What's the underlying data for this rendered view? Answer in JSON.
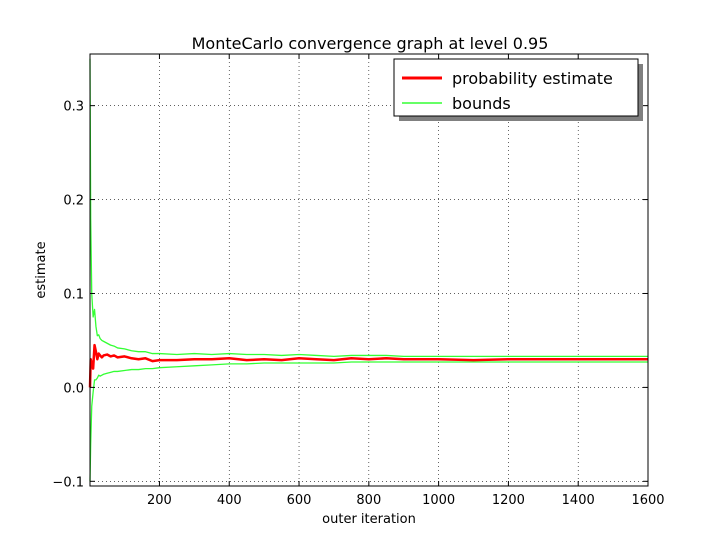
{
  "chart_data": {
    "type": "line",
    "title": "MonteCarlo convergence graph at level 0.95",
    "xlabel": "outer iteration",
    "ylabel": "estimate",
    "xlim": [
      1,
      1600
    ],
    "ylim": [
      -0.105,
      0.355
    ],
    "xticks": [
      200,
      400,
      600,
      800,
      1000,
      1200,
      1400,
      1600
    ],
    "yticks": [
      -0.1,
      0.0,
      0.1,
      0.2,
      0.3
    ],
    "ytick_labels": [
      "−0.1",
      "0.0",
      "0.1",
      "0.2",
      "0.3"
    ],
    "grid": true,
    "legend_position": "top-right",
    "legend": [
      "probability estimate",
      "bounds"
    ],
    "colors": {
      "estimate": "#ff0000",
      "bounds": "#33ff33"
    },
    "series": [
      {
        "name": "probability estimate",
        "x": [
          1,
          3,
          6,
          10,
          14,
          18,
          22,
          26,
          30,
          35,
          40,
          50,
          60,
          70,
          80,
          100,
          120,
          140,
          160,
          180,
          200,
          250,
          300,
          350,
          400,
          450,
          500,
          550,
          600,
          650,
          700,
          750,
          800,
          850,
          900,
          950,
          1000,
          1100,
          1200,
          1300,
          1400,
          1500,
          1600
        ],
        "y": [
          0.0,
          0.03,
          0.025,
          0.02,
          0.045,
          0.038,
          0.03,
          0.036,
          0.034,
          0.032,
          0.034,
          0.035,
          0.033,
          0.034,
          0.032,
          0.033,
          0.031,
          0.03,
          0.031,
          0.028,
          0.029,
          0.029,
          0.03,
          0.03,
          0.031,
          0.029,
          0.03,
          0.029,
          0.031,
          0.03,
          0.029,
          0.031,
          0.03,
          0.031,
          0.03,
          0.03,
          0.03,
          0.029,
          0.03,
          0.03,
          0.03,
          0.03,
          0.03
        ]
      },
      {
        "name": "bounds",
        "x": [
          1,
          3,
          6,
          10,
          14,
          18,
          22,
          26,
          30,
          35,
          40,
          50,
          60,
          70,
          80,
          100,
          120,
          140,
          160,
          180,
          200,
          250,
          300,
          350,
          400,
          450,
          500,
          550,
          600,
          650,
          700,
          750,
          800,
          850,
          900,
          950,
          1000,
          1100,
          1200,
          1300,
          1400,
          1500,
          1600
        ],
        "y": [
          0.35,
          0.18,
          0.1,
          0.075,
          0.083,
          0.065,
          0.055,
          0.056,
          0.052,
          0.05,
          0.049,
          0.047,
          0.045,
          0.044,
          0.042,
          0.041,
          0.039,
          0.038,
          0.038,
          0.036,
          0.036,
          0.035,
          0.036,
          0.035,
          0.036,
          0.035,
          0.035,
          0.034,
          0.035,
          0.034,
          0.033,
          0.034,
          0.034,
          0.034,
          0.033,
          0.033,
          0.033,
          0.033,
          0.033,
          0.033,
          0.033,
          0.033,
          0.033
        ]
      },
      {
        "name": "",
        "x": [
          1,
          3,
          6,
          10,
          14,
          18,
          22,
          26,
          30,
          35,
          40,
          50,
          60,
          70,
          80,
          100,
          120,
          140,
          160,
          180,
          200,
          250,
          300,
          350,
          400,
          450,
          500,
          550,
          600,
          650,
          700,
          750,
          800,
          850,
          900,
          950,
          1000,
          1100,
          1200,
          1300,
          1400,
          1500,
          1600
        ],
        "y": [
          -0.1,
          -0.06,
          -0.02,
          -0.005,
          0.008,
          0.008,
          0.01,
          0.013,
          0.012,
          0.013,
          0.014,
          0.015,
          0.016,
          0.017,
          0.017,
          0.018,
          0.019,
          0.019,
          0.02,
          0.02,
          0.021,
          0.022,
          0.023,
          0.024,
          0.025,
          0.025,
          0.026,
          0.026,
          0.026,
          0.026,
          0.026,
          0.027,
          0.027,
          0.027,
          0.027,
          0.027,
          0.027,
          0.027,
          0.027,
          0.027,
          0.027,
          0.027,
          0.027
        ]
      }
    ]
  }
}
